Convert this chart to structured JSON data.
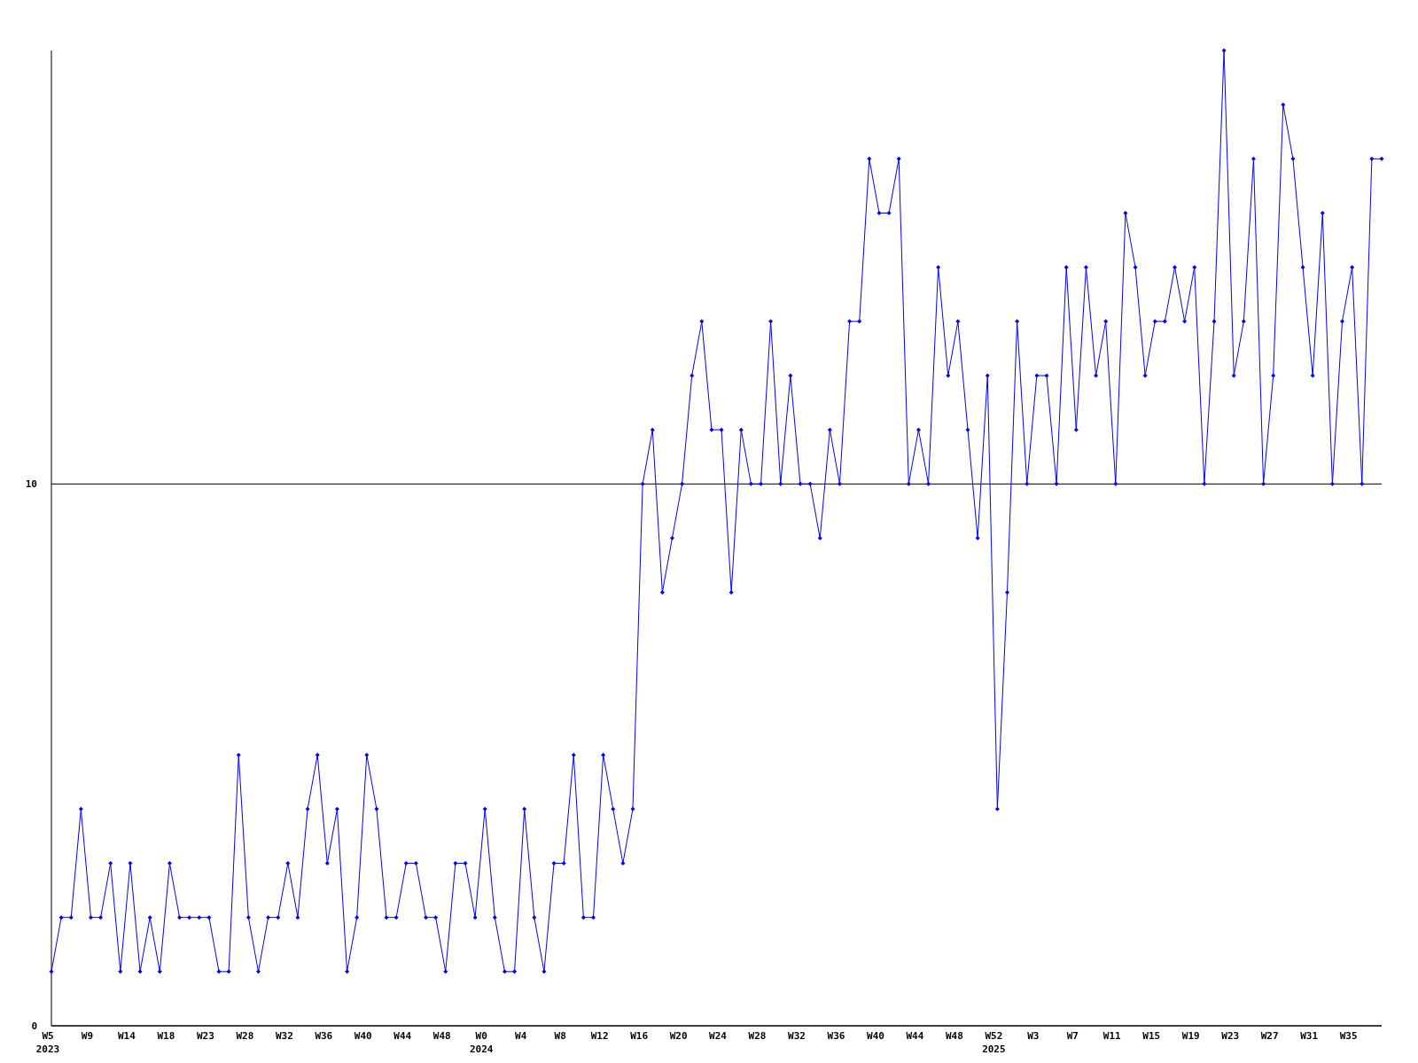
{
  "chart_data": {
    "type": "line",
    "categories": [
      "W5\n2023",
      null,
      null,
      null,
      "W9",
      null,
      null,
      null,
      "W14",
      null,
      null,
      null,
      "W18",
      null,
      null,
      null,
      "W23",
      null,
      null,
      null,
      "W28",
      null,
      null,
      null,
      "W32",
      null,
      null,
      null,
      "W36",
      null,
      null,
      null,
      "W40",
      null,
      null,
      null,
      "W44",
      null,
      null,
      null,
      "W48",
      null,
      null,
      null,
      "W0\n2024",
      null,
      null,
      null,
      "W4",
      null,
      null,
      null,
      "W8",
      null,
      null,
      null,
      "W12",
      null,
      null,
      null,
      "W16",
      null,
      null,
      null,
      "W20",
      null,
      null,
      null,
      "W24",
      null,
      null,
      null,
      "W28",
      null,
      null,
      null,
      "W32",
      null,
      null,
      null,
      "W36",
      null,
      null,
      null,
      "W40",
      null,
      null,
      null,
      "W44",
      null,
      null,
      null,
      "W48",
      null,
      null,
      null,
      "W52\n2025",
      null,
      null,
      null,
      "W3",
      null,
      null,
      null,
      "W7",
      null,
      null,
      null,
      "W11",
      null,
      null,
      null,
      "W15",
      null,
      null,
      null,
      "W19",
      null,
      null,
      null,
      "W23",
      null,
      null,
      null,
      "W27",
      null,
      null,
      null,
      "W31",
      null,
      null,
      null,
      "W35",
      null,
      null,
      null
    ],
    "series": [
      {
        "color": "#0000ff",
        "values": [
          1,
          2,
          2,
          4,
          2,
          2,
          3,
          1,
          3,
          1,
          2,
          1,
          3,
          2,
          2,
          2,
          2,
          1,
          1,
          5,
          2,
          1,
          2,
          2,
          3,
          2,
          4,
          5,
          3,
          4,
          1,
          2,
          5,
          4,
          2,
          2,
          3,
          3,
          2,
          2,
          1,
          3,
          3,
          2,
          4,
          2,
          1,
          1,
          4,
          2,
          1,
          3,
          3,
          5,
          2,
          2,
          5,
          4,
          3,
          4,
          10,
          11,
          8,
          9,
          10,
          12,
          13,
          11,
          11,
          8,
          11,
          10,
          10,
          13,
          10,
          12,
          10,
          10,
          9,
          11,
          10,
          13,
          13,
          16,
          15,
          15,
          16,
          10,
          11,
          10,
          14,
          12,
          13,
          11,
          9,
          12,
          4,
          8,
          13,
          10,
          12,
          12,
          10,
          14,
          11,
          14,
          12,
          13,
          10,
          15,
          14,
          12,
          13,
          13,
          14,
          13,
          14,
          10,
          13,
          18,
          12,
          13,
          16,
          10,
          12,
          17,
          16,
          14,
          12,
          15,
          10,
          13,
          14,
          10,
          16,
          16
        ]
      }
    ],
    "ylim": [
      0,
      18
    ],
    "yticks": [
      0,
      10
    ],
    "grid": "y",
    "marker": "diamond",
    "line_style": "solid"
  }
}
